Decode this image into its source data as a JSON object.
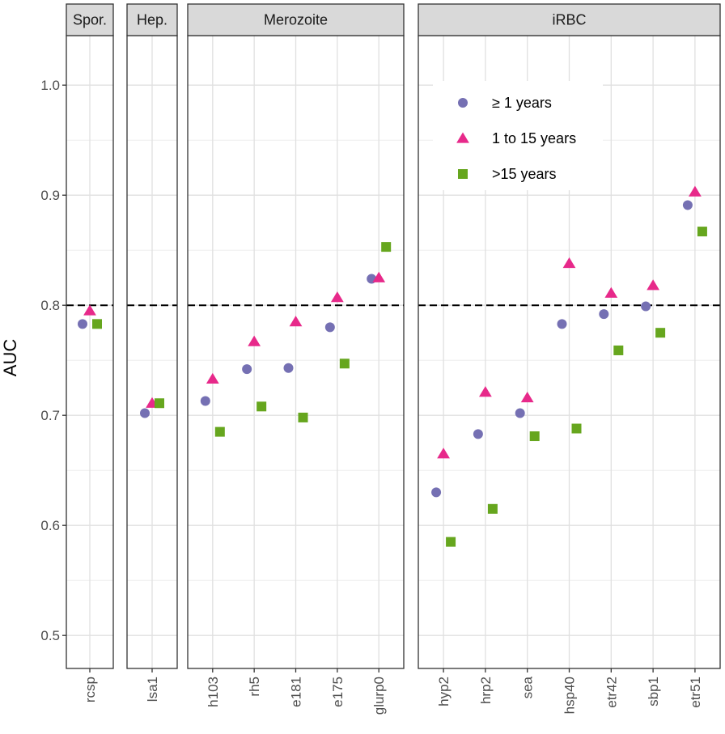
{
  "chart_data": {
    "type": "scatter",
    "ylabel": "AUC",
    "xlabel": "",
    "ylim": [
      0.47,
      1.045
    ],
    "yticks": [
      0.5,
      0.6,
      0.7,
      0.8,
      0.9,
      1.0
    ],
    "ytick_labels": [
      "0.5",
      "0.6",
      "0.7",
      "0.8",
      "0.9",
      "1.0"
    ],
    "reference_line": 0.8,
    "legend_position": "top-right (inside iRBC panel)",
    "series": [
      {
        "name": "≥ 1 years",
        "shape": "circle",
        "color": "#7570b3"
      },
      {
        "name": "1 to 15 years",
        "shape": "triangle",
        "color": "#e7298a"
      },
      {
        "name": ">15 years",
        "shape": "square",
        "color": "#66a61e"
      }
    ],
    "panels": [
      {
        "label": "Spor.",
        "categories": [
          "rcsp"
        ],
        "values": {
          "ge1": [
            0.783
          ],
          "y1to15": [
            0.795
          ],
          "gt15": [
            0.783
          ]
        }
      },
      {
        "label": "Hep.",
        "categories": [
          "lsa1"
        ],
        "values": {
          "ge1": [
            0.702
          ],
          "y1to15": [
            0.711
          ],
          "gt15": [
            0.711
          ]
        }
      },
      {
        "label": "Merozoite",
        "categories": [
          "h103",
          "rh5",
          "e181",
          "e175",
          "glurp0"
        ],
        "values": {
          "ge1": [
            0.713,
            0.742,
            0.743,
            0.78,
            0.824
          ],
          "y1to15": [
            0.733,
            0.767,
            0.785,
            0.807,
            0.825
          ],
          "gt15": [
            0.685,
            0.708,
            0.698,
            0.747,
            0.853
          ]
        }
      },
      {
        "label": "iRBC",
        "categories": [
          "hyp2",
          "hrp2",
          "sea",
          "hsp40",
          "etr42",
          "sbp1",
          "etr51"
        ],
        "values": {
          "ge1": [
            0.63,
            0.683,
            0.702,
            0.783,
            0.792,
            0.799,
            0.891
          ],
          "y1to15": [
            0.665,
            0.721,
            0.716,
            0.838,
            0.811,
            0.818,
            0.903
          ],
          "gt15": [
            0.585,
            0.615,
            0.681,
            0.688,
            0.759,
            0.775,
            0.867
          ]
        }
      }
    ]
  }
}
